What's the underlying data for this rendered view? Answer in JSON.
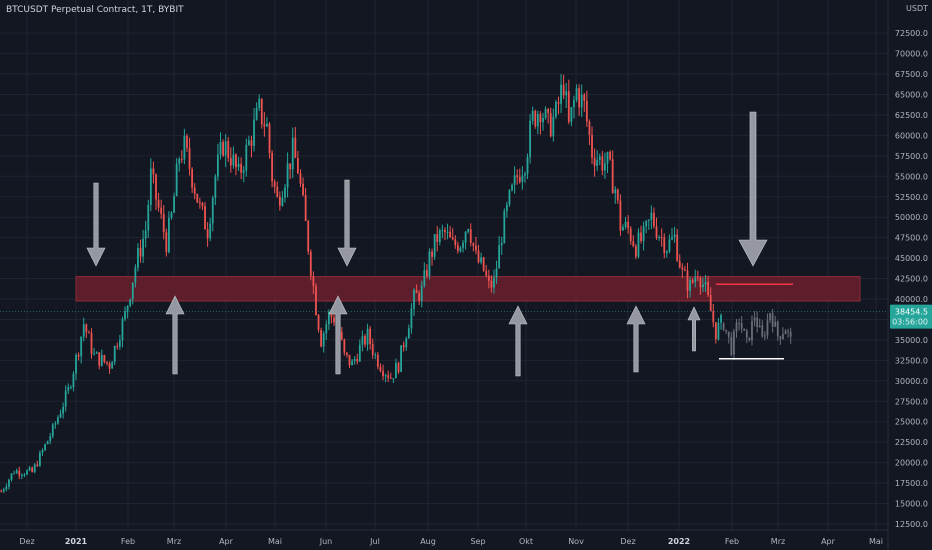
{
  "header": {
    "title": "BTCUSDT Perpetual Contract, 1T, BYBIT"
  },
  "price_axis": {
    "currency": "USDT",
    "current_price": "38454.5",
    "countdown": "03:56:00",
    "current_price_bg": "#26a69a"
  },
  "colors": {
    "background": "#131722",
    "grid": "#1f2433",
    "up": "#26a69a",
    "down": "#ef5350",
    "zone_fill": "#6b1e2b",
    "zone_stroke": "#8c2a38",
    "arrow_fill": "#9598a1",
    "projection": "#6a6d78",
    "resistance_line": "#f23645",
    "support_line": "#ffffff"
  },
  "chart_data": {
    "type": "candlestick",
    "ylim": [
      10000,
      75000
    ],
    "y_ticks": [
      12500,
      15000,
      17500,
      20000,
      22500,
      25000,
      27500,
      30000,
      32500,
      35000,
      37500,
      40000,
      42500,
      45000,
      47500,
      50000,
      52500,
      55000,
      57500,
      60000,
      62500,
      65000,
      67500,
      70000,
      72500
    ],
    "x_labels": [
      "Dez",
      "2021",
      "Feb",
      "Mrz",
      "Apr",
      "Mai",
      "Jun",
      "Jul",
      "Aug",
      "Sep",
      "Okt",
      "Nov",
      "Dez",
      "2022",
      "Feb",
      "Mrz",
      "Apr",
      "Mai"
    ],
    "price_path": [
      [
        0,
        16500
      ],
      [
        5,
        19000
      ],
      [
        12,
        18800
      ],
      [
        20,
        24000
      ],
      [
        26,
        28800
      ],
      [
        30,
        34000
      ],
      [
        32,
        37000
      ],
      [
        36,
        33000
      ],
      [
        42,
        32000
      ],
      [
        48,
        38000
      ],
      [
        52,
        44000
      ],
      [
        56,
        48500
      ],
      [
        58,
        55000
      ],
      [
        61,
        51000
      ],
      [
        64,
        47000
      ],
      [
        66,
        50000
      ],
      [
        69,
        57500
      ],
      [
        71,
        58500
      ],
      [
        74,
        55000
      ],
      [
        77,
        51000
      ],
      [
        80,
        48500
      ],
      [
        83,
        55000
      ],
      [
        86,
        59000
      ],
      [
        89,
        57500
      ],
      [
        92,
        55000
      ],
      [
        96,
        59000
      ],
      [
        100,
        63000
      ],
      [
        103,
        61000
      ],
      [
        105,
        55000
      ],
      [
        107,
        52000
      ],
      [
        110,
        55000
      ],
      [
        113,
        58000
      ],
      [
        115,
        56000
      ],
      [
        118,
        49000
      ],
      [
        120,
        44000
      ],
      [
        122,
        39000
      ],
      [
        124,
        35000
      ],
      [
        127,
        38000
      ],
      [
        130,
        37500
      ],
      [
        133,
        33000
      ],
      [
        136,
        32000
      ],
      [
        139,
        34000
      ],
      [
        142,
        35500
      ],
      [
        145,
        33000
      ],
      [
        148,
        31500
      ],
      [
        151,
        30500
      ],
      [
        154,
        32000
      ],
      [
        157,
        36000
      ],
      [
        160,
        40000
      ],
      [
        163,
        41000
      ],
      [
        166,
        45000
      ],
      [
        169,
        47500
      ],
      [
        172,
        48000
      ],
      [
        175,
        46500
      ],
      [
        178,
        47000
      ],
      [
        181,
        49500
      ],
      [
        184,
        45000
      ],
      [
        187,
        43500
      ],
      [
        189,
        41500
      ],
      [
        191,
        42000
      ],
      [
        194,
        48000
      ],
      [
        197,
        52000
      ],
      [
        200,
        55000
      ],
      [
        203,
        57000
      ],
      [
        206,
        62000
      ],
      [
        209,
        63500
      ],
      [
        212,
        61000
      ],
      [
        215,
        62500
      ],
      [
        218,
        66500
      ],
      [
        220,
        61000
      ],
      [
        223,
        65500
      ],
      [
        226,
        63500
      ],
      [
        229,
        58000
      ],
      [
        232,
        57000
      ],
      [
        235,
        56500
      ],
      [
        238,
        53500
      ],
      [
        240,
        49000
      ],
      [
        243,
        48500
      ],
      [
        246,
        46500
      ],
      [
        249,
        47500
      ],
      [
        252,
        50000
      ],
      [
        255,
        48000
      ],
      [
        258,
        46500
      ],
      [
        261,
        47500
      ],
      [
        264,
        43000
      ],
      [
        267,
        41500
      ],
      [
        270,
        43500
      ],
      [
        273,
        41000
      ],
      [
        275,
        38500
      ],
      [
        277,
        36000
      ],
      [
        279,
        37000
      ]
    ],
    "candle_count": 280,
    "projection_start": 280,
    "projection_end": 307,
    "projection_path": [
      [
        280,
        37000
      ],
      [
        283,
        34000
      ],
      [
        286,
        37500
      ],
      [
        289,
        34500
      ],
      [
        292,
        38000
      ],
      [
        295,
        35000
      ],
      [
        298,
        38500
      ],
      [
        301,
        35500
      ],
      [
        304,
        36500
      ],
      [
        307,
        34000
      ]
    ],
    "resistance_zone": [
      40000,
      42500
    ],
    "resistance_line": 41800,
    "support_line": 32700,
    "arrows_down": [
      {
        "x": 33,
        "top": 55000,
        "tip": 42800
      },
      {
        "x": 121,
        "top": 56000,
        "tip": 42800
      },
      {
        "x": 282,
        "top": 62000,
        "tip": 42500
      }
    ],
    "arrows_up": [
      {
        "x": 38,
        "tip": 39800,
        "bottom": 30000
      },
      {
        "x": 120,
        "tip": 39800,
        "bottom": 30000
      },
      {
        "x": 191,
        "tip": 38500,
        "bottom": 29500
      },
      {
        "x": 247,
        "tip": 38500,
        "bottom": 30000
      },
      {
        "x": 272,
        "tip": 38000,
        "bottom": 32500
      }
    ]
  }
}
